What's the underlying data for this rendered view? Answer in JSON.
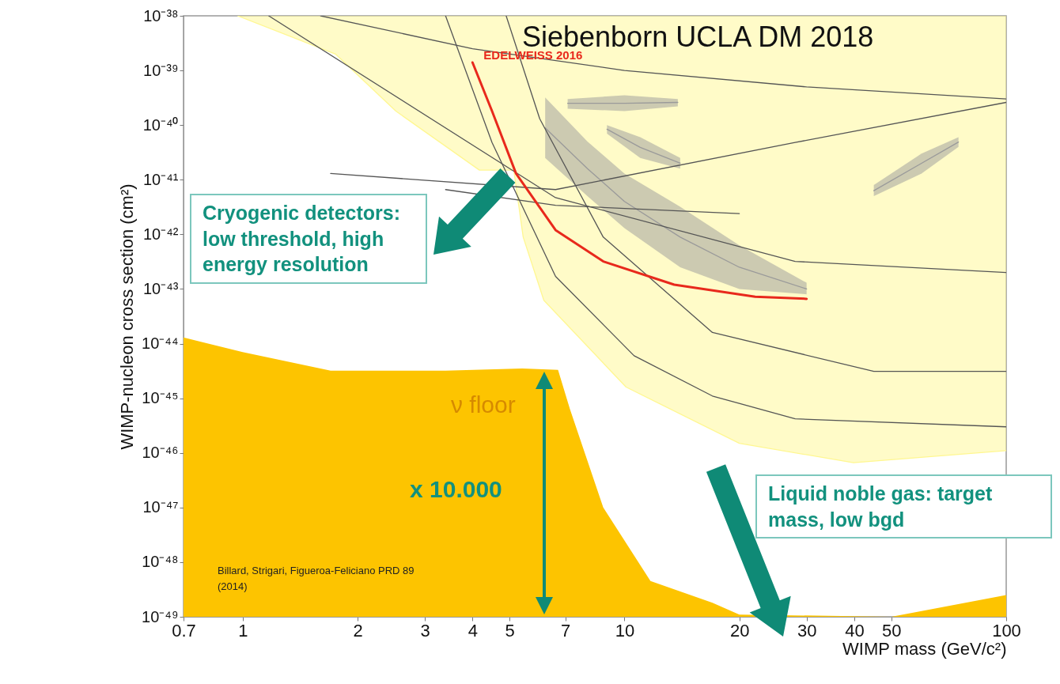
{
  "chart_data": {
    "type": "line",
    "xlabel": "WIMP mass (GeV/c²)",
    "ylabel": "WIMP-nucleon cross section (cm²)",
    "log": "xy",
    "xlim": [
      0.7,
      100
    ],
    "xticks": [
      0.7,
      1,
      2,
      3,
      4,
      5,
      7,
      10,
      20,
      30,
      40,
      50,
      100
    ],
    "ylim": [
      1e-49,
      1e-38
    ],
    "yticks": [
      {
        "value": 1e-49,
        "label": "10⁻⁴⁹"
      },
      {
        "value": 1e-48,
        "label": "10⁻⁴⁸"
      },
      {
        "value": 1e-47,
        "label": "10⁻⁴⁷"
      },
      {
        "value": 1e-46,
        "label": "10⁻⁴⁶"
      },
      {
        "value": 1e-45,
        "label": "10⁻⁴⁵"
      },
      {
        "value": 1e-44,
        "label": "10⁻⁴⁴"
      },
      {
        "value": 1e-43,
        "label": "10⁻⁴³"
      },
      {
        "value": 1e-42,
        "label": "10⁻⁴²"
      },
      {
        "value": 1e-41,
        "label": "10⁻⁴¹"
      },
      {
        "value": 1e-40,
        "label": "10⁻⁴⁰"
      },
      {
        "value": 1e-39,
        "label": "10⁻³⁹"
      },
      {
        "value": 1e-38,
        "label": "10⁻³⁸"
      }
    ],
    "series": [
      {
        "color": "#fff791",
        "x": [
          0.97,
          1.75,
          2.52,
          4.17,
          5.13,
          5.43,
          6.15,
          10.1,
          20,
          39.8,
          100
        ],
        "values": [
          1e-38,
          2e-39,
          1.8e-40,
          1.5e-41,
          1.5e-41,
          8.9e-43,
          6.2e-44,
          1.6e-45,
          1.5e-46,
          6.6e-47,
          1.1e-46
        ],
        "lower": [
          1e-38,
          2e-39,
          1.8e-40,
          1.5e-41,
          1.5e-41,
          8.9e-43,
          6.2e-44,
          1.6e-45,
          1.5e-46,
          6.6e-47,
          1.1e-46
        ],
        "upper": [
          1e-38,
          1e-38,
          1e-38,
          1e-38,
          1e-38,
          1e-38,
          1e-38,
          1e-38,
          1e-38,
          1e-38,
          1e-38
        ]
      },
      {
        "color": "#9a9a9a",
        "x": [
          6.2,
          8,
          10,
          14,
          20,
          30
        ],
        "values": [
          8.9e-41,
          1.6e-41,
          4e-42,
          8.9e-43,
          2.5e-43,
          1e-43
        ],
        "lower": [
          2.5e-41,
          5e-42,
          1.3e-42,
          2.5e-43,
          1e-43,
          8e-44
        ],
        "upper": [
          3.2e-40,
          5e-41,
          1.3e-41,
          3.2e-42,
          6.3e-43,
          1.3e-43
        ]
      },
      {
        "color": "#9a9a9a",
        "x": [
          7.1,
          10,
          13.8
        ],
        "values": [
          2.5e-40,
          2.5e-40,
          2.6e-40
        ],
        "lower": [
          2e-40,
          1.8e-40,
          2.2e-40
        ],
        "upper": [
          3e-40,
          3.5e-40,
          3e-40
        ]
      },
      {
        "color": "#9a9a9a",
        "x": [
          9,
          11,
          14
        ],
        "values": [
          8.4e-41,
          3.9e-41,
          2e-41
        ],
        "lower": [
          7e-41,
          2.5e-41,
          1.6e-41
        ],
        "upper": [
          1e-40,
          6e-41,
          2.5e-41
        ]
      },
      {
        "color": "#9a9a9a",
        "x": [
          45,
          60,
          75
        ],
        "values": [
          6.3e-42,
          2e-41,
          4.9e-41
        ],
        "lower": [
          5e-42,
          1.3e-41,
          4e-41
        ],
        "upper": [
          8e-42,
          3e-41,
          6e-41
        ]
      },
      {
        "type": "area",
        "color": "#fdc400",
        "x": [
          0.7,
          1,
          1.7,
          3.4,
          5.4,
          6.7,
          7.2,
          8.8,
          11.7,
          17,
          20,
          50,
          100
        ],
        "values": [
          1.3e-44,
          7e-45,
          3.2e-45,
          3.2e-45,
          3.5e-45,
          3.3e-45,
          6.3e-46,
          1e-47,
          4.5e-49,
          1.8e-49,
          1.1e-49,
          1e-49,
          2.5e-49
        ]
      },
      {
        "color": "#555555",
        "x": [
          1.17,
          6.6,
          28,
          100
        ],
        "values": [
          1e-38,
          4.7e-42,
          3.2e-43,
          2e-43
        ]
      },
      {
        "color": "#555555",
        "x": [
          3.4,
          4.5,
          6.6,
          10.6,
          17,
          28,
          100
        ],
        "values": [
          1e-38,
          4.8e-41,
          1.7e-43,
          6e-45,
          1.1e-45,
          4.2e-46,
          3e-46
        ]
      },
      {
        "color": "#555555",
        "x": [
          4.9,
          6,
          8.8,
          17,
          45,
          100
        ],
        "values": [
          1e-38,
          1.3e-40,
          8.9e-43,
          1.6e-44,
          3.1e-45,
          3.1e-45
        ]
      },
      {
        "color": "#555555",
        "x": [
          1.7,
          6.6,
          28,
          100
        ],
        "values": [
          1.3e-41,
          6.6e-42,
          4.8e-41,
          2.6e-40
        ]
      },
      {
        "color": "#555555",
        "x": [
          3.4,
          6.6,
          20
        ],
        "values": [
          6.6e-42,
          3.4e-42,
          2.4e-42
        ]
      },
      {
        "color": "#555555",
        "x": [
          1.6,
          4,
          10,
          30,
          100
        ],
        "values": [
          1e-38,
          2.5e-39,
          1e-39,
          5e-40,
          3e-40
        ]
      },
      {
        "name": "EDELWEISS 2016",
        "color": "#e8291c",
        "x": [
          4.0,
          4.5,
          5.2,
          6.6,
          8.8,
          13.5,
          22,
          30
        ],
        "values": [
          1.4e-39,
          1.8e-40,
          1.3e-41,
          1.2e-42,
          3.2e-43,
          1.2e-43,
          7.2e-44,
          6.6e-44
        ]
      }
    ],
    "annotations": [
      "Siebenborn UCLA DM 2018",
      "Cryogenic detectors: low threshold, high energy resolution",
      "ν floor",
      "x 10.000",
      "Liquid noble gas: target mass, low bgd",
      "Billard, Strigari, Figueroa-Feliciano PRD 89 (2014)"
    ]
  }
}
